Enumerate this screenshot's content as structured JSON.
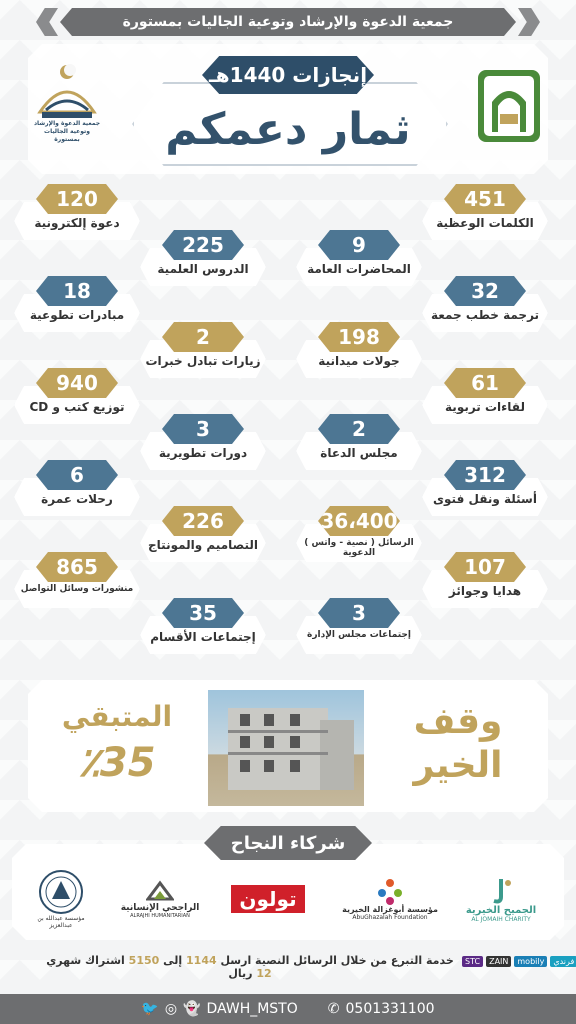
{
  "header": {
    "org_name": "جمعية الدعوة والإرشاد وتوعية الجاليات بمستورة"
  },
  "hero": {
    "subtitle": "إنجازات 1440هـ",
    "title": "ثمار دعمكم"
  },
  "logo_left": {
    "text": "جمعية الدعوة والإرشاد وتوعية الجاليات بمستورة"
  },
  "stats": [
    {
      "value": "451",
      "label": "الكلمات الوعظية",
      "color": "gold"
    },
    {
      "value": "9",
      "label": "المحاضرات العامة",
      "color": "blue"
    },
    {
      "value": "225",
      "label": "الدروس العلمية",
      "color": "blue"
    },
    {
      "value": "120",
      "label": "دعوة إلكترونية",
      "color": "gold"
    },
    {
      "value": "32",
      "label": "ترجمة خطب جمعة",
      "color": "blue"
    },
    {
      "value": "198",
      "label": "جولات ميدانية",
      "color": "gold"
    },
    {
      "value": "2",
      "label": "زيارات تبادل خبرات",
      "color": "gold"
    },
    {
      "value": "18",
      "label": "مبادرات تطوعية",
      "color": "blue"
    },
    {
      "value": "61",
      "label": "لقاءات تربوية",
      "color": "gold"
    },
    {
      "value": "2",
      "label": "مجلس الدعاة",
      "color": "blue"
    },
    {
      "value": "3",
      "label": "دورات تطويرية",
      "color": "blue"
    },
    {
      "value": "940",
      "label": "توزيع كتب و CD",
      "color": "gold"
    },
    {
      "value": "312",
      "label": "أسئلة ونقل فتوى",
      "color": "blue"
    },
    {
      "value": "36،400",
      "label": "الرسائل ( نصية - واتس ) الدعوية",
      "color": "gold"
    },
    {
      "value": "226",
      "label": "التصاميم والمونتاج",
      "color": "gold"
    },
    {
      "value": "6",
      "label": "رحلات عمرة",
      "color": "blue"
    },
    {
      "value": "107",
      "label": "هدايا وجوائز",
      "color": "gold"
    },
    {
      "value": "3",
      "label": "إجتماعات مجلس الإدارة",
      "color": "blue"
    },
    {
      "value": "35",
      "label": "إجتماعات الأقسام",
      "color": "blue"
    },
    {
      "value": "865",
      "label": "منشورات وسائل التواصل",
      "color": "gold"
    }
  ],
  "waqf": {
    "title_line1": "وقف",
    "title_line2": "الخير",
    "remaining_label": "المتبقي",
    "remaining_value": "٪35"
  },
  "partners": {
    "heading": "شركاء النجاح",
    "items": [
      {
        "name": "الجميح الخيرية",
        "sub": "AL JOMAIH CHARITY"
      },
      {
        "name": "مؤسسة أبوغزالة الخيرية",
        "sub": "AbuGhazalah Foundation"
      },
      {
        "name": "تولون",
        "sub": ""
      },
      {
        "name": "الراجحي الإنسانية",
        "sub": "ALRAJHI HUMANITARIAN"
      },
      {
        "name": "مؤسسة عبدالله بن عبدالعزيز",
        "sub": ""
      }
    ]
  },
  "donation": {
    "text_a": "خدمة التبرع من خلال الرسائل النصية ارسل",
    "code": "1144",
    "text_b": "إلى",
    "number": "5150",
    "text_c": "اشتراك شهري",
    "amount": "12",
    "text_d": "ريال"
  },
  "operators": [
    "STC",
    "ZAIN",
    "mobily",
    "فرندي"
  ],
  "footer": {
    "handle": "DAWH_MSTO",
    "phone": "0501331100"
  },
  "colors": {
    "gold": "#c0a35c",
    "blue": "#4d7693",
    "navy": "#2e4e69",
    "gray": "#6d6e70"
  }
}
